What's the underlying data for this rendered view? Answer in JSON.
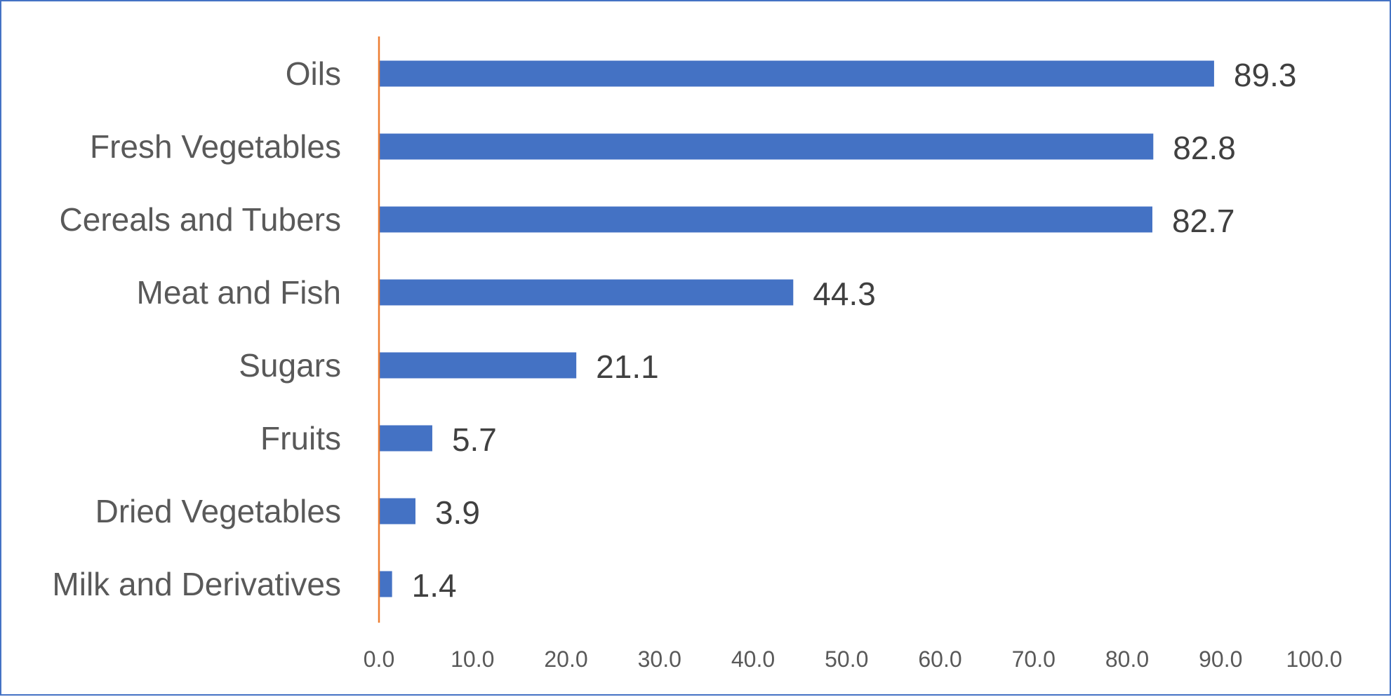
{
  "chart_data": {
    "type": "bar",
    "orientation": "horizontal",
    "categories": [
      "Oils",
      "Fresh Vegetables",
      "Cereals and Tubers",
      "Meat and Fish",
      "Sugars",
      "Fruits",
      "Dried Vegetables",
      "Milk and Derivatives"
    ],
    "values": [
      89.3,
      82.8,
      82.7,
      44.3,
      21.1,
      5.7,
      3.9,
      1.4
    ],
    "data_labels": [
      "89.3",
      "82.8",
      "82.7",
      "44.3",
      "21.1",
      "5.7",
      "3.9",
      "1.4"
    ],
    "xticks": [
      "0.0",
      "10.0",
      "20.0",
      "30.0",
      "40.0",
      "50.0",
      "60.0",
      "70.0",
      "80.0",
      "90.0",
      "100.0"
    ],
    "xlim": [
      0,
      100
    ],
    "title": "",
    "xlabel": "",
    "ylabel": "",
    "grid": false,
    "legend": "none",
    "colors": {
      "bar": "#4472c4",
      "axis_line": "#ed7d31",
      "frame": "#4472c4",
      "category_text": "#595959",
      "data_label_text": "#404040",
      "tick_text": "#595959"
    }
  }
}
